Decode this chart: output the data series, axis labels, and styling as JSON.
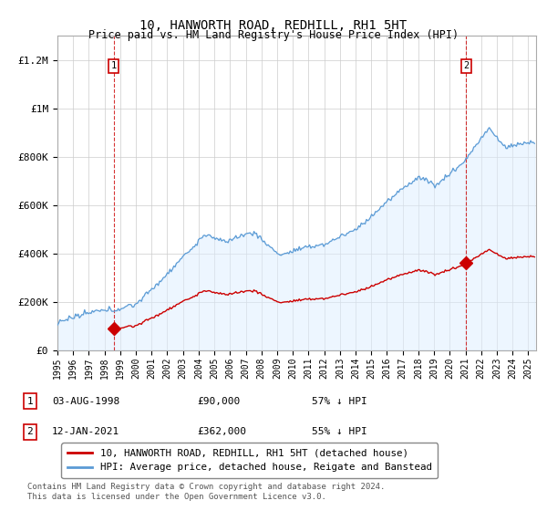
{
  "title": "10, HANWORTH ROAD, REDHILL, RH1 5HT",
  "subtitle": "Price paid vs. HM Land Registry's House Price Index (HPI)",
  "footer": "Contains HM Land Registry data © Crown copyright and database right 2024.\nThis data is licensed under the Open Government Licence v3.0.",
  "legend_line1": "10, HANWORTH ROAD, REDHILL, RH1 5HT (detached house)",
  "legend_line2": "HPI: Average price, detached house, Reigate and Banstead",
  "sale1_label": "1",
  "sale1_date": "03-AUG-1998",
  "sale1_price": "£90,000",
  "sale1_hpi": "57% ↓ HPI",
  "sale1_x": 1998.58,
  "sale1_y": 90000,
  "sale2_label": "2",
  "sale2_date": "12-JAN-2021",
  "sale2_price": "£362,000",
  "sale2_hpi": "55% ↓ HPI",
  "sale2_x": 2021.04,
  "sale2_y": 362000,
  "hpi_color": "#5b9bd5",
  "hpi_fill": "#ddeeff",
  "sale_color": "#cc0000",
  "marker_color": "#cc0000",
  "ylim": [
    0,
    1300000
  ],
  "xlim_start": 1995.0,
  "xlim_end": 2025.5,
  "yticks": [
    0,
    200000,
    400000,
    600000,
    800000,
    1000000,
    1200000
  ],
  "ytick_labels": [
    "£0",
    "£200K",
    "£400K",
    "£600K",
    "£800K",
    "£1M",
    "£1.2M"
  ],
  "xticks": [
    1995,
    1996,
    1997,
    1998,
    1999,
    2000,
    2001,
    2002,
    2003,
    2004,
    2005,
    2006,
    2007,
    2008,
    2009,
    2010,
    2011,
    2012,
    2013,
    2014,
    2015,
    2016,
    2017,
    2018,
    2019,
    2020,
    2021,
    2022,
    2023,
    2024,
    2025
  ],
  "bg_color": "#ffffff",
  "grid_color": "#cccccc"
}
